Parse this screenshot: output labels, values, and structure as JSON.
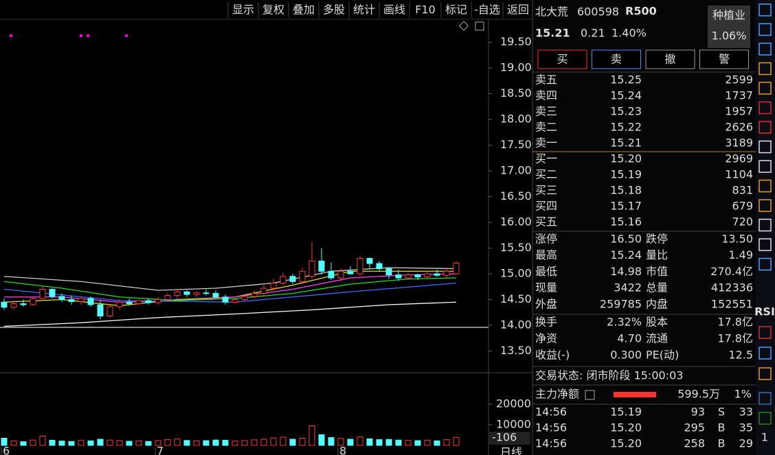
{
  "toolbar": [
    "显示",
    "复权",
    "叠加",
    "多股",
    "统计",
    "画线",
    "F10",
    "标记",
    "-自选",
    "返回"
  ],
  "chart_data": {
    "type": "candlestick",
    "period": "日线",
    "volume_label": "-106",
    "categories": [
      "6",
      null,
      null,
      null,
      null,
      null,
      null,
      null,
      null,
      null,
      null,
      null,
      null,
      null,
      null,
      null,
      "7",
      null,
      null,
      null,
      null,
      null,
      null,
      null,
      null,
      null,
      null,
      null,
      null,
      null,
      null,
      null,
      null,
      null,
      null,
      "8",
      null,
      null,
      null,
      null,
      null,
      null,
      null,
      null,
      null,
      null,
      null,
      null
    ],
    "ylim": [
      13.2,
      19.8
    ],
    "yticks": [
      {
        "value": 13.5,
        "label": "13.50"
      },
      {
        "value": 14,
        "label": "14.00"
      },
      {
        "value": 14.5,
        "label": "14.50"
      },
      {
        "value": 15,
        "label": "15.00"
      },
      {
        "value": 15.5,
        "label": "15.50"
      },
      {
        "value": 16,
        "label": "16.00"
      },
      {
        "value": 16.5,
        "label": "16.50"
      },
      {
        "value": 17,
        "label": "17.00"
      },
      {
        "value": 17.5,
        "label": "17.50"
      },
      {
        "value": 18,
        "label": "18.00"
      },
      {
        "value": 18.5,
        "label": "18.50"
      },
      {
        "value": 19,
        "label": "19.00"
      },
      {
        "value": 19.5,
        "label": "19.50"
      }
    ],
    "up_color": "#ff3c3c",
    "down_color": "#54ffff",
    "candles": [
      {
        "open": 14.45,
        "high": 14.52,
        "low": 14.3,
        "close": 14.35
      },
      {
        "open": 14.35,
        "high": 14.48,
        "low": 14.3,
        "close": 14.42
      },
      {
        "open": 14.42,
        "high": 14.5,
        "low": 14.36,
        "close": 14.4
      },
      {
        "open": 14.4,
        "high": 14.55,
        "low": 14.38,
        "close": 14.52
      },
      {
        "open": 14.52,
        "high": 14.75,
        "low": 14.48,
        "close": 14.7
      },
      {
        "open": 14.7,
        "high": 14.72,
        "low": 14.52,
        "close": 14.56
      },
      {
        "open": 14.56,
        "high": 14.62,
        "low": 14.45,
        "close": 14.5
      },
      {
        "open": 14.5,
        "high": 14.58,
        "low": 14.4,
        "close": 14.46
      },
      {
        "open": 14.46,
        "high": 14.55,
        "low": 14.4,
        "close": 14.52
      },
      {
        "open": 14.52,
        "high": 14.56,
        "low": 14.36,
        "close": 14.4
      },
      {
        "open": 14.4,
        "high": 14.48,
        "low": 14.12,
        "close": 14.18
      },
      {
        "open": 14.18,
        "high": 14.4,
        "low": 14.15,
        "close": 14.36
      },
      {
        "open": 14.36,
        "high": 14.5,
        "low": 14.3,
        "close": 14.45
      },
      {
        "open": 14.45,
        "high": 14.52,
        "low": 14.38,
        "close": 14.42
      },
      {
        "open": 14.42,
        "high": 14.5,
        "low": 14.4,
        "close": 14.48
      },
      {
        "open": 14.48,
        "high": 14.52,
        "low": 14.4,
        "close": 14.44
      },
      {
        "open": 14.44,
        "high": 14.55,
        "low": 14.4,
        "close": 14.5
      },
      {
        "open": 14.5,
        "high": 14.62,
        "low": 14.46,
        "close": 14.58
      },
      {
        "open": 14.58,
        "high": 14.7,
        "low": 14.52,
        "close": 14.65
      },
      {
        "open": 14.65,
        "high": 14.68,
        "low": 14.55,
        "close": 14.6
      },
      {
        "open": 14.6,
        "high": 14.66,
        "low": 14.55,
        "close": 14.63
      },
      {
        "open": 14.63,
        "high": 14.7,
        "low": 14.58,
        "close": 14.62
      },
      {
        "open": 14.62,
        "high": 14.68,
        "low": 14.52,
        "close": 14.55
      },
      {
        "open": 14.55,
        "high": 14.6,
        "low": 14.4,
        "close": 14.45
      },
      {
        "open": 14.45,
        "high": 14.55,
        "low": 14.42,
        "close": 14.5
      },
      {
        "open": 14.5,
        "high": 14.6,
        "low": 14.46,
        "close": 14.56
      },
      {
        "open": 14.56,
        "high": 14.68,
        "low": 14.52,
        "close": 14.62
      },
      {
        "open": 14.62,
        "high": 14.78,
        "low": 14.58,
        "close": 14.72
      },
      {
        "open": 14.72,
        "high": 14.9,
        "low": 14.68,
        "close": 14.82
      },
      {
        "open": 14.82,
        "high": 15.02,
        "low": 14.78,
        "close": 14.95
      },
      {
        "open": 14.95,
        "high": 15.0,
        "low": 14.8,
        "close": 14.85
      },
      {
        "open": 14.85,
        "high": 15.12,
        "low": 14.8,
        "close": 15.05
      },
      {
        "open": 14.95,
        "high": 15.62,
        "low": 14.9,
        "close": 15.25
      },
      {
        "open": 15.25,
        "high": 15.5,
        "low": 14.98,
        "close": 15.05
      },
      {
        "open": 15.05,
        "high": 15.22,
        "low": 14.88,
        "close": 14.92
      },
      {
        "open": 14.92,
        "high": 15.1,
        "low": 14.85,
        "close": 15.05
      },
      {
        "open": 15.05,
        "high": 15.15,
        "low": 14.98,
        "close": 15.0
      },
      {
        "open": 15.0,
        "high": 15.35,
        "low": 14.96,
        "close": 15.3
      },
      {
        "open": 15.3,
        "high": 15.32,
        "low": 15.1,
        "close": 15.2
      },
      {
        "open": 15.2,
        "high": 15.25,
        "low": 15.05,
        "close": 15.1
      },
      {
        "open": 15.1,
        "high": 15.12,
        "low": 14.9,
        "close": 14.98
      },
      {
        "open": 14.98,
        "high": 15.08,
        "low": 14.86,
        "close": 14.92
      },
      {
        "open": 14.92,
        "high": 15.02,
        "low": 14.88,
        "close": 14.98
      },
      {
        "open": 14.98,
        "high": 15.0,
        "low": 14.88,
        "close": 14.94
      },
      {
        "open": 14.94,
        "high": 15.05,
        "low": 14.9,
        "close": 15.0
      },
      {
        "open": 15.0,
        "high": 15.08,
        "low": 14.94,
        "close": 14.97
      },
      {
        "open": 14.97,
        "high": 15.12,
        "low": 14.92,
        "close": 15.05
      },
      {
        "open": 15.0,
        "high": 15.24,
        "low": 14.98,
        "close": 15.21
      }
    ],
    "ma_lines": [
      {
        "color": "#d0d0d0",
        "x": [
          0,
          8,
          16,
          22,
          28,
          34,
          40,
          47
        ],
        "values": [
          14.95,
          14.85,
          14.68,
          14.72,
          14.82,
          15.05,
          15.12,
          15.1
        ]
      },
      {
        "color": "#ffffff",
        "x": [
          0,
          8,
          16,
          24,
          32,
          40,
          47
        ],
        "values": [
          13.98,
          14.05,
          14.15,
          14.22,
          14.3,
          14.4,
          14.45
        ]
      },
      {
        "color": "#e6e600",
        "x": [
          0,
          6,
          12,
          18,
          24,
          30,
          36,
          42,
          47
        ],
        "values": [
          14.45,
          14.5,
          14.38,
          14.5,
          14.55,
          14.78,
          15.05,
          15.05,
          15.05
        ]
      },
      {
        "color": "#ff40ff",
        "x": [
          0,
          6,
          12,
          18,
          24,
          30,
          36,
          42,
          47
        ],
        "values": [
          14.55,
          14.55,
          14.45,
          14.48,
          14.55,
          14.7,
          14.92,
          14.98,
          15.0
        ]
      },
      {
        "color": "#22dd22",
        "x": [
          0,
          6,
          12,
          18,
          24,
          30,
          36,
          42,
          47
        ],
        "values": [
          14.85,
          14.72,
          14.55,
          14.48,
          14.52,
          14.62,
          14.8,
          14.9,
          14.92
        ]
      },
      {
        "color": "#3c6cff",
        "x": [
          0,
          12,
          24,
          36,
          47
        ],
        "values": [
          14.7,
          14.48,
          14.45,
          14.65,
          14.82
        ]
      }
    ],
    "volume_ylim": [
      0,
      35000
    ],
    "volume_yticks": [
      10000,
      20000
    ],
    "volumes": [
      3500,
      2200,
      1800,
      2600,
      4500,
      2500,
      2100,
      1900,
      2400,
      2200,
      3000,
      2600,
      2300,
      2000,
      2200,
      1900,
      2300,
      2800,
      3100,
      2400,
      2200,
      2300,
      2600,
      2500,
      2100,
      2300,
      2700,
      3000,
      3600,
      4000,
      3000,
      3500,
      9500,
      5200,
      3800,
      3400,
      3000,
      4200,
      3200,
      2800,
      2900,
      2600,
      2400,
      2300,
      2500,
      2200,
      2800,
      3900
    ]
  },
  "quote": {
    "name": "北大荒",
    "code": "600598",
    "tag": "R500",
    "price": "15.21",
    "change": "0.21",
    "pct": "1.40%",
    "sector": "种植业",
    "sector_pct": "1.06%"
  },
  "buttons": [
    "买",
    "卖",
    "撤",
    "警"
  ],
  "asks": [
    [
      "卖五",
      "15.25",
      "2599"
    ],
    [
      "卖四",
      "15.24",
      "1737"
    ],
    [
      "卖三",
      "15.23",
      "1957"
    ],
    [
      "卖二",
      "15.22",
      "2626"
    ],
    [
      "卖一",
      "15.21",
      "3189"
    ]
  ],
  "bids": [
    [
      "买一",
      "15.20",
      "2969"
    ],
    [
      "买二",
      "15.19",
      "1104"
    ],
    [
      "买三",
      "15.18",
      "831"
    ],
    [
      "买四",
      "15.17",
      "679"
    ],
    [
      "买五",
      "15.16",
      "720"
    ]
  ],
  "stats": [
    [
      "涨停",
      "16.50",
      "跌停",
      "13.50"
    ],
    [
      "最高",
      "15.24",
      "量比",
      "1.49"
    ],
    [
      "最低",
      "14.98",
      "市值",
      "270.4亿"
    ],
    [
      "现量",
      "3422",
      "总量",
      "412336"
    ],
    [
      "外盘",
      "259785",
      "内盘",
      "152551"
    ]
  ],
  "fundamentals": [
    [
      "换手",
      "2.32%",
      "股本",
      "17.8亿"
    ],
    [
      "净资",
      "4.70",
      "流通",
      "17.8亿"
    ],
    [
      "收益(-)",
      "0.300",
      "PE(动)",
      "12.5"
    ]
  ],
  "status": "交易状态: 闭市阶段 15:00:03",
  "main_flow": {
    "label": "主力净额",
    "value": "599.5万",
    "pct": "1%"
  },
  "trades": [
    [
      "14:56",
      "15.19",
      "93",
      "S",
      "33"
    ],
    [
      "14:56",
      "15.20",
      "295",
      "B",
      "35"
    ],
    [
      "14:56",
      "15.20",
      "258",
      "B",
      "29"
    ]
  ],
  "sidebar": [
    "RSI",
    "1"
  ]
}
